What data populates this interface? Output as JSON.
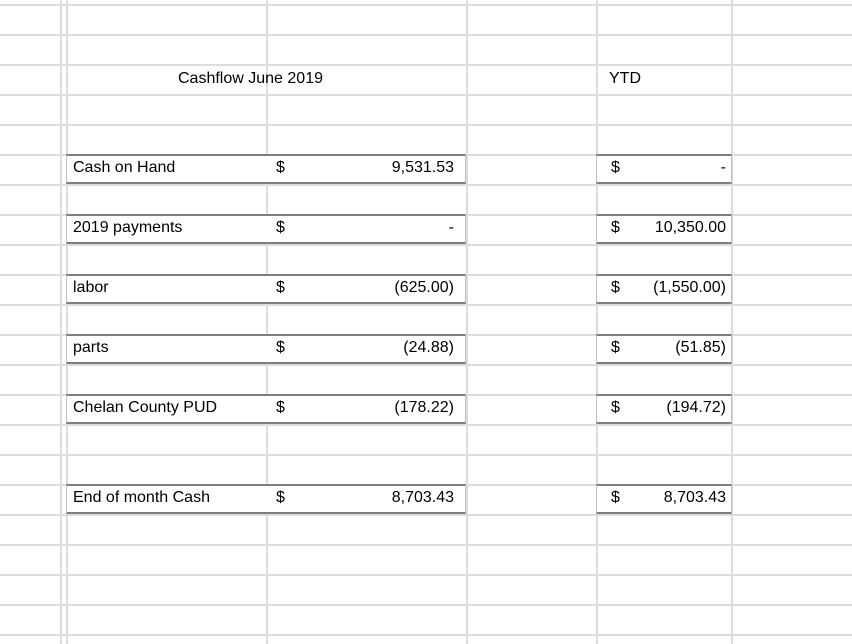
{
  "sheet": {
    "title": "Cashflow June 2019",
    "ytd_header": "YTD",
    "rows": [
      {
        "label": "Cash on Hand",
        "currency": "$",
        "value": "9,531.53",
        "ytd_currency": "$",
        "ytd_value": "-"
      },
      {
        "label": "2019 payments",
        "currency": "$",
        "value": "-",
        "ytd_currency": "$",
        "ytd_value": "10,350.00"
      },
      {
        "label": "labor",
        "currency": "$",
        "value": "(625.00)",
        "ytd_currency": "$",
        "ytd_value": "(1,550.00)"
      },
      {
        "label": "parts",
        "currency": "$",
        "value": "(24.88)",
        "ytd_currency": "$",
        "ytd_value": "(51.85)"
      },
      {
        "label": "Chelan County PUD",
        "currency": "$",
        "value": "(178.22)",
        "ytd_currency": "$",
        "ytd_value": "(194.72)"
      },
      {
        "label": "End of month Cash",
        "currency": "$",
        "value": "8,703.43",
        "ytd_currency": "$",
        "ytd_value": "8,703.43"
      }
    ]
  }
}
